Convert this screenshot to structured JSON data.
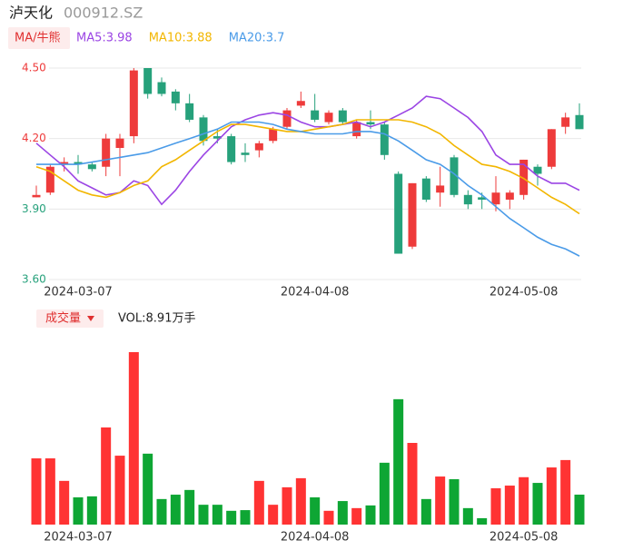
{
  "chart_data": {
    "type": "candlestick",
    "title": "泸天化",
    "subtitle": "000912.SZ",
    "legend_title": "MA/牛熊",
    "categories": [
      null,
      null,
      null,
      "2024-03-07",
      null,
      null,
      null,
      null,
      null,
      null,
      null,
      null,
      null,
      null,
      null,
      null,
      null,
      null,
      null,
      null,
      "2024-04-08",
      null,
      null,
      null,
      null,
      null,
      null,
      null,
      null,
      null,
      null,
      null,
      null,
      null,
      null,
      "2024-05-08",
      null,
      null,
      null,
      null
    ],
    "open": [
      3.95,
      3.97,
      4.09,
      4.1,
      4.09,
      4.08,
      4.16,
      4.21,
      4.5,
      4.44,
      4.4,
      4.35,
      4.29,
      4.21,
      4.21,
      4.14,
      4.15,
      4.19,
      4.25,
      4.34,
      4.32,
      4.27,
      4.32,
      4.21,
      4.27,
      4.26,
      4.05,
      3.74,
      4.03,
      3.97,
      4.12,
      3.96,
      3.95,
      3.92,
      3.94,
      3.96,
      4.08,
      4.08,
      4.25,
      4.3
    ],
    "high": [
      4.0,
      4.09,
      4.12,
      4.13,
      4.1,
      4.22,
      4.22,
      4.5,
      4.5,
      4.46,
      4.41,
      4.39,
      4.3,
      4.24,
      4.22,
      4.18,
      4.19,
      4.25,
      4.33,
      4.4,
      4.39,
      4.32,
      4.33,
      4.28,
      4.32,
      4.27,
      4.06,
      4.01,
      4.04,
      4.08,
      4.13,
      3.98,
      3.97,
      4.04,
      3.98,
      4.11,
      4.09,
      4.24,
      4.31,
      4.35
    ],
    "low": [
      3.95,
      3.96,
      4.06,
      4.05,
      4.06,
      4.04,
      4.04,
      4.18,
      4.37,
      4.38,
      4.32,
      4.27,
      4.17,
      4.18,
      4.09,
      4.1,
      4.12,
      4.18,
      4.24,
      4.33,
      4.27,
      4.26,
      4.26,
      4.2,
      4.24,
      4.11,
      3.71,
      3.73,
      3.93,
      3.91,
      3.95,
      3.9,
      3.9,
      3.89,
      3.9,
      3.94,
      4.0,
      4.07,
      4.22,
      4.24
    ],
    "close": [
      3.96,
      4.08,
      4.1,
      4.09,
      4.07,
      4.2,
      4.2,
      4.49,
      4.39,
      4.39,
      4.35,
      4.28,
      4.19,
      4.2,
      4.1,
      4.13,
      4.18,
      4.24,
      4.32,
      4.36,
      4.28,
      4.31,
      4.27,
      4.27,
      4.26,
      4.13,
      3.71,
      4.01,
      3.94,
      4.0,
      3.96,
      3.92,
      3.94,
      3.97,
      3.97,
      4.11,
      4.05,
      4.24,
      4.29,
      4.24
    ],
    "up_color": "#ee3b3b",
    "down_color": "#26a17b",
    "series": [
      {
        "name": "MA5:3.98",
        "color": "#9b45e4",
        "values": [
          4.18,
          4.13,
          4.08,
          4.02,
          3.99,
          3.96,
          3.97,
          4.02,
          4.0,
          3.92,
          3.98,
          4.06,
          4.13,
          4.19,
          4.25,
          4.28,
          4.3,
          4.31,
          4.3,
          4.27,
          4.25,
          4.25,
          4.26,
          4.27,
          4.25,
          4.27,
          4.3,
          4.33,
          4.38,
          4.37,
          4.33,
          4.29,
          4.23,
          4.13,
          4.09,
          4.09,
          4.04,
          4.01,
          4.01,
          3.98
        ]
      },
      {
        "name": "MA10:3.88",
        "color": "#f2b600",
        "values": [
          4.08,
          4.06,
          4.02,
          3.98,
          3.96,
          3.95,
          3.97,
          4.0,
          4.02,
          4.08,
          4.11,
          4.15,
          4.19,
          4.23,
          4.26,
          4.26,
          4.25,
          4.24,
          4.23,
          4.23,
          4.24,
          4.25,
          4.26,
          4.28,
          4.28,
          4.28,
          4.28,
          4.27,
          4.25,
          4.22,
          4.17,
          4.13,
          4.09,
          4.08,
          4.06,
          4.03,
          3.99,
          3.95,
          3.92,
          3.88
        ]
      },
      {
        "name": "MA20:3.7",
        "color": "#4a9be8",
        "values": [
          4.09,
          4.09,
          4.09,
          4.09,
          4.1,
          4.11,
          4.12,
          4.13,
          4.14,
          4.16,
          4.18,
          4.2,
          4.22,
          4.24,
          4.27,
          4.27,
          4.27,
          4.26,
          4.24,
          4.23,
          4.22,
          4.22,
          4.22,
          4.23,
          4.23,
          4.22,
          4.19,
          4.15,
          4.11,
          4.09,
          4.05,
          4.0,
          3.96,
          3.91,
          3.86,
          3.82,
          3.78,
          3.75,
          3.73,
          3.7
        ]
      }
    ],
    "ylim": [
      3.6,
      4.5
    ],
    "yticks": [
      {
        "value": 4.5,
        "label": "4.50"
      },
      {
        "value": 4.2,
        "label": "4.20"
      },
      {
        "value": 3.9,
        "label": "3.90"
      },
      {
        "value": 3.6,
        "label": "3.60"
      }
    ],
    "ytick_colors": [
      "#ee3b3b",
      "#ee3b3b",
      "#26a17b",
      "#26a17b"
    ],
    "grid": true,
    "volume": {
      "title": "成交量",
      "label": "VOL:8.91万手",
      "up_color": "#ff3333",
      "down_color": "#0ea634",
      "values": [
        19.7,
        19.7,
        13.0,
        8.1,
        8.4,
        28.9,
        20.5,
        51.3,
        21.1,
        7.6,
        8.9,
        10.3,
        5.9,
        5.9,
        4.1,
        4.3,
        13.0,
        5.9,
        11.1,
        13.8,
        8.1,
        4.1,
        7.0,
        4.9,
        5.7,
        18.4,
        37.3,
        24.3,
        7.6,
        14.3,
        13.5,
        4.9,
        1.9,
        10.8,
        11.6,
        14.1,
        12.4,
        17.0,
        19.2,
        8.91
      ]
    }
  }
}
